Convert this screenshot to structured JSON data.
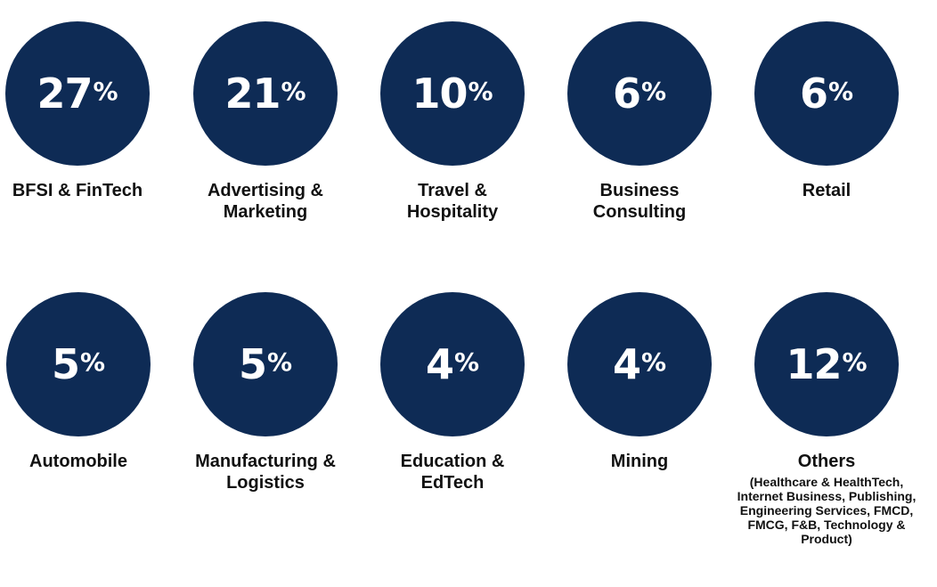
{
  "colors": {
    "circle": "#0e2b55",
    "text_on_circle": "#ffffff",
    "label": "#111111"
  },
  "chart_data": {
    "type": "bar",
    "title": "",
    "unit": "%",
    "categories": [
      "BFSI & FinTech",
      "Advertising & Marketing",
      "Travel & Hospitality",
      "Business Consulting",
      "Retail",
      "Automobile",
      "Manufacturing & Logistics",
      "Education & EdTech",
      "Mining",
      "Others"
    ],
    "values": [
      27,
      21,
      10,
      6,
      6,
      5,
      5,
      4,
      4,
      12
    ],
    "items": [
      {
        "value": "27",
        "unit": "%",
        "label_lines": [
          "BFSI & FinTech"
        ]
      },
      {
        "value": "21",
        "unit": "%",
        "label_lines": [
          "Advertising &",
          "Marketing"
        ]
      },
      {
        "value": "10",
        "unit": "%",
        "label_lines": [
          "Travel &",
          "Hospitality"
        ]
      },
      {
        "value": "6",
        "unit": "%",
        "label_lines": [
          "Business",
          "Consulting"
        ]
      },
      {
        "value": "6",
        "unit": "%",
        "label_lines": [
          "Retail"
        ]
      },
      {
        "value": "5",
        "unit": "%",
        "label_lines": [
          "Automobile"
        ]
      },
      {
        "value": "5",
        "unit": "%",
        "label_lines": [
          "Manufacturing &",
          "Logistics"
        ]
      },
      {
        "value": "4",
        "unit": "%",
        "label_lines": [
          "Education &",
          "EdTech"
        ]
      },
      {
        "value": "4",
        "unit": "%",
        "label_lines": [
          "Mining"
        ]
      },
      {
        "value": "12",
        "unit": "%",
        "label_lines": [
          "Others"
        ],
        "sub_lines": [
          "(Healthcare & HealthTech,",
          "Internet Business, Publishing,",
          "Engineering Services, FMCD,",
          "FMCG, F&B, Technology &",
          "Product)"
        ]
      }
    ]
  }
}
